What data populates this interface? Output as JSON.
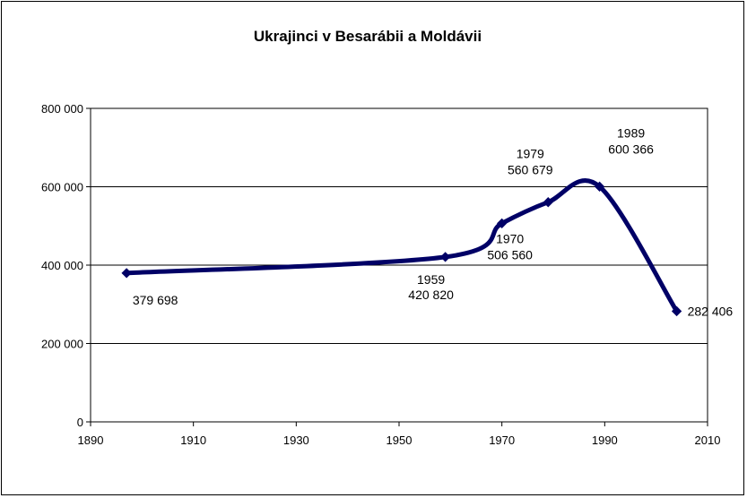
{
  "chart_data": {
    "type": "line",
    "title": "Ukrajinci v Besarábii a Moldávii",
    "xlabel": "",
    "ylabel": "",
    "xlim": [
      1890,
      2010
    ],
    "ylim": [
      0,
      800000
    ],
    "x_ticks": [
      1890,
      1910,
      1930,
      1950,
      1970,
      1990,
      2010
    ],
    "x_tick_labels": [
      "1890",
      "1910",
      "1930",
      "1950",
      "1970",
      "1990",
      "2010"
    ],
    "y_ticks": [
      0,
      200000,
      400000,
      600000,
      800000
    ],
    "y_tick_labels": [
      "0",
      "200 000",
      "400 000",
      "600 000",
      "800 000"
    ],
    "grid": "horizontal",
    "series": [
      {
        "name": "Ukrajinci",
        "color": "#000066",
        "smooth": true,
        "x": [
          1897,
          1959,
          1970,
          1979,
          1989,
          2004
        ],
        "y": [
          379698,
          420820,
          506560,
          560679,
          600366,
          282406
        ],
        "labels": [
          {
            "year": "",
            "value": "379 698"
          },
          {
            "year": "1959",
            "value": "420 820"
          },
          {
            "year": "1970",
            "value": "506 560"
          },
          {
            "year": "1979",
            "value": "560 679"
          },
          {
            "year": "1989",
            "value": "600 366"
          },
          {
            "year": "",
            "value": "282 406"
          }
        ]
      }
    ]
  }
}
